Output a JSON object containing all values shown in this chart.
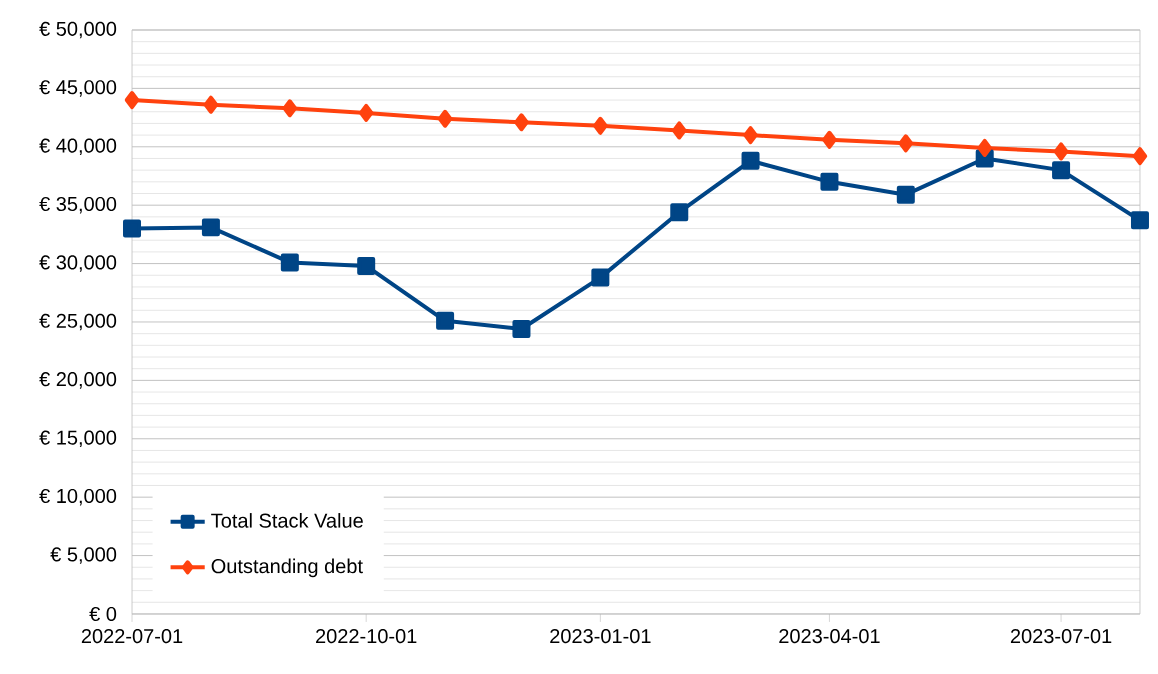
{
  "chart_data": {
    "type": "line",
    "x": [
      "2022-07-01",
      "2022-08-01",
      "2022-09-01",
      "2022-10-01",
      "2022-11-01",
      "2022-12-01",
      "2023-01-01",
      "2023-02-01",
      "2023-03-01",
      "2023-04-01",
      "2023-05-01",
      "2023-06-01",
      "2023-07-01",
      "2023-08-01"
    ],
    "series": [
      {
        "name": "Total Stack Value",
        "color": "#004586",
        "marker": "square",
        "values": [
          33000,
          33100,
          30100,
          29800,
          25100,
          24400,
          28800,
          34400,
          38800,
          37000,
          35900,
          39000,
          38000,
          33700
        ]
      },
      {
        "name": "Outstanding debt",
        "color": "#ff420e",
        "marker": "diamond",
        "values": [
          44000,
          43600,
          43300,
          42900,
          42400,
          42100,
          41800,
          41400,
          41000,
          40600,
          40300,
          39900,
          39600,
          39200
        ]
      }
    ],
    "xlim": [
      "2022-07-01",
      "2023-08-01"
    ],
    "xticks": [
      "2022-07-01",
      "2022-10-01",
      "2023-01-01",
      "2023-04-01",
      "2023-07-01"
    ],
    "ylim": [
      0,
      50000
    ],
    "yticks": [
      {
        "value": 0,
        "label": "€ 0"
      },
      {
        "value": 5000,
        "label": "€ 5,000"
      },
      {
        "value": 10000,
        "label": "€ 10,000"
      },
      {
        "value": 15000,
        "label": "€ 15,000"
      },
      {
        "value": 20000,
        "label": "€ 20,000"
      },
      {
        "value": 25000,
        "label": "€ 25,000"
      },
      {
        "value": 30000,
        "label": "€ 30,000"
      },
      {
        "value": 35000,
        "label": "€ 35,000"
      },
      {
        "value": 40000,
        "label": "€ 40,000"
      },
      {
        "value": 45000,
        "label": "€ 45,000"
      },
      {
        "value": 50000,
        "label": "€ 50,000"
      }
    ],
    "grid": "y",
    "legend": "bottom left",
    "line_style": "solid"
  }
}
